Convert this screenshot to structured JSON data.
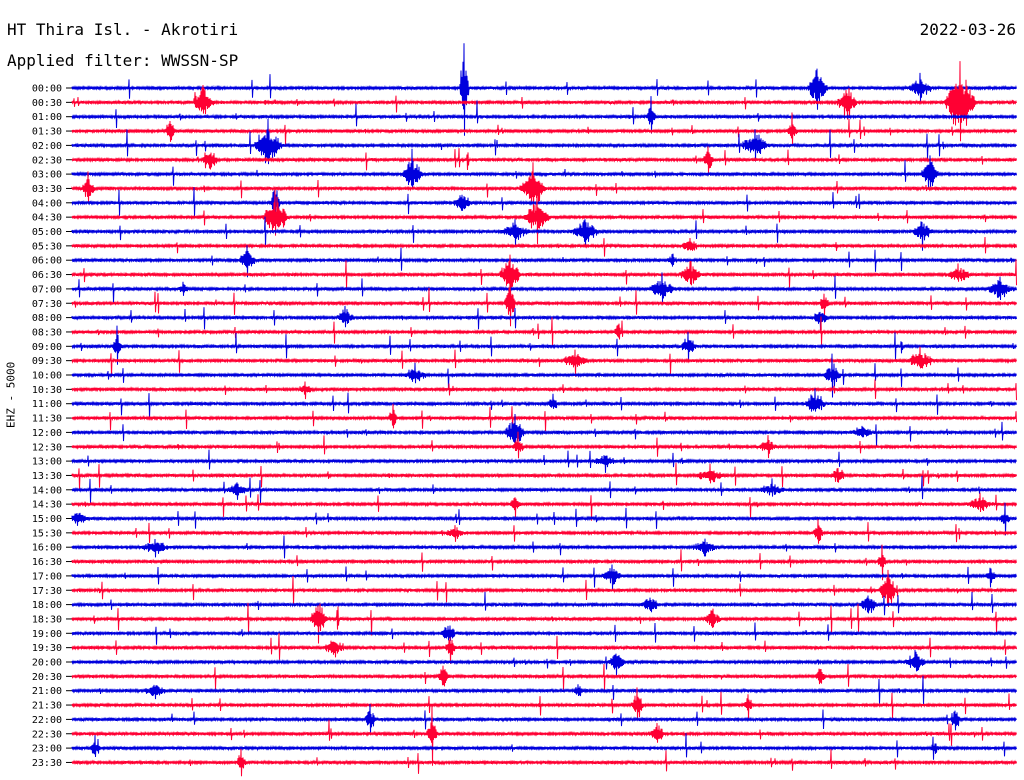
{
  "header": {
    "title": "HT Thira Isl. - Akrotiri",
    "date": "2022-03-26",
    "filter_label": "Applied filter:",
    "filter_value": "WWSSN-SP"
  },
  "channel_label": "EHZ - 5000",
  "colors": {
    "even_trace": "#0000dd",
    "odd_trace": "#ff0033",
    "text": "#000000",
    "background": "#ffffff"
  },
  "chart_data": {
    "type": "line",
    "rows": [
      {
        "time": "00:00",
        "color": "blue",
        "bursts": [
          [
            464,
            50,
            0.2
          ],
          [
            817,
            22,
            0.6
          ],
          [
            920,
            12,
            0.8
          ]
        ]
      },
      {
        "time": "00:30",
        "color": "red",
        "bursts": [
          [
            203,
            18,
            0.6
          ],
          [
            847,
            20,
            0.6
          ],
          [
            960,
            40,
            0.9
          ]
        ]
      },
      {
        "time": "01:00",
        "color": "blue",
        "bursts": [
          [
            651,
            16,
            0.3
          ]
        ]
      },
      {
        "time": "01:30",
        "color": "red",
        "bursts": [
          [
            170,
            16,
            0.3
          ],
          [
            792,
            14,
            0.3
          ]
        ]
      },
      {
        "time": "02:00",
        "color": "blue",
        "bursts": [
          [
            268,
            28,
            0.8
          ],
          [
            755,
            14,
            0.9
          ]
        ]
      },
      {
        "time": "02:30",
        "color": "red",
        "bursts": [
          [
            210,
            12,
            0.5
          ],
          [
            708,
            18,
            0.3
          ]
        ]
      },
      {
        "time": "03:00",
        "color": "blue",
        "bursts": [
          [
            412,
            20,
            0.6
          ],
          [
            930,
            22,
            0.5
          ]
        ]
      },
      {
        "time": "03:30",
        "color": "red",
        "bursts": [
          [
            88,
            14,
            0.4
          ],
          [
            533,
            22,
            0.8
          ]
        ]
      },
      {
        "time": "04:00",
        "color": "blue",
        "bursts": [
          [
            275,
            22,
            0.3
          ],
          [
            462,
            12,
            0.6
          ]
        ]
      },
      {
        "time": "04:30",
        "color": "red",
        "bursts": [
          [
            275,
            24,
            0.8
          ],
          [
            537,
            20,
            0.8
          ]
        ]
      },
      {
        "time": "05:00",
        "color": "blue",
        "bursts": [
          [
            515,
            12,
            0.9
          ],
          [
            585,
            14,
            0.9
          ],
          [
            922,
            14,
            0.6
          ]
        ]
      },
      {
        "time": "05:30",
        "color": "red",
        "bursts": [
          [
            690,
            10,
            0.5
          ]
        ]
      },
      {
        "time": "06:00",
        "color": "blue",
        "bursts": [
          [
            247,
            16,
            0.5
          ],
          [
            672,
            10,
            0.3
          ]
        ]
      },
      {
        "time": "06:30",
        "color": "red",
        "bursts": [
          [
            510,
            22,
            0.6
          ],
          [
            690,
            16,
            0.6
          ],
          [
            958,
            10,
            0.9
          ]
        ]
      },
      {
        "time": "07:00",
        "color": "blue",
        "bursts": [
          [
            183,
            10,
            0.3
          ],
          [
            662,
            14,
            0.8
          ],
          [
            1000,
            12,
            0.9
          ]
        ]
      },
      {
        "time": "07:30",
        "color": "red",
        "bursts": [
          [
            510,
            26,
            0.3
          ],
          [
            824,
            14,
            0.3
          ]
        ]
      },
      {
        "time": "08:00",
        "color": "blue",
        "bursts": [
          [
            345,
            12,
            0.5
          ],
          [
            820,
            10,
            0.5
          ]
        ]
      },
      {
        "time": "08:30",
        "color": "red",
        "bursts": [
          [
            618,
            10,
            0.3
          ]
        ]
      },
      {
        "time": "09:00",
        "color": "blue",
        "bursts": [
          [
            117,
            16,
            0.3
          ],
          [
            688,
            12,
            0.5
          ]
        ]
      },
      {
        "time": "09:30",
        "color": "red",
        "bursts": [
          [
            575,
            12,
            0.8
          ],
          [
            920,
            12,
            0.9
          ]
        ]
      },
      {
        "time": "10:00",
        "color": "blue",
        "bursts": [
          [
            415,
            10,
            0.8
          ],
          [
            832,
            16,
            0.5
          ]
        ]
      },
      {
        "time": "10:30",
        "color": "red",
        "bursts": [
          [
            305,
            8,
            0.5
          ]
        ]
      },
      {
        "time": "11:00",
        "color": "blue",
        "bursts": [
          [
            553,
            10,
            0.3
          ],
          [
            815,
            14,
            0.6
          ]
        ]
      },
      {
        "time": "11:30",
        "color": "red",
        "bursts": [
          [
            393,
            12,
            0.3
          ]
        ]
      },
      {
        "time": "12:00",
        "color": "blue",
        "bursts": [
          [
            515,
            18,
            0.6
          ],
          [
            862,
            8,
            0.9
          ]
        ]
      },
      {
        "time": "12:30",
        "color": "red",
        "bursts": [
          [
            518,
            14,
            0.3
          ],
          [
            768,
            12,
            0.5
          ]
        ]
      },
      {
        "time": "13:00",
        "color": "blue",
        "bursts": [
          [
            605,
            8,
            0.8
          ]
        ]
      },
      {
        "time": "13:30",
        "color": "red",
        "bursts": [
          [
            710,
            10,
            0.9
          ],
          [
            838,
            10,
            0.5
          ]
        ]
      },
      {
        "time": "14:00",
        "color": "blue",
        "bursts": [
          [
            237,
            8,
            0.8
          ],
          [
            772,
            8,
            0.9
          ]
        ]
      },
      {
        "time": "14:30",
        "color": "red",
        "bursts": [
          [
            515,
            12,
            0.3
          ],
          [
            980,
            10,
            0.9
          ]
        ]
      },
      {
        "time": "15:00",
        "color": "blue",
        "bursts": [
          [
            77,
            8,
            0.8
          ],
          [
            1005,
            12,
            0.3
          ]
        ]
      },
      {
        "time": "15:30",
        "color": "red",
        "bursts": [
          [
            455,
            8,
            0.8
          ],
          [
            818,
            14,
            0.3
          ]
        ]
      },
      {
        "time": "16:00",
        "color": "blue",
        "bursts": [
          [
            155,
            10,
            0.9
          ],
          [
            705,
            10,
            0.9
          ]
        ]
      },
      {
        "time": "16:30",
        "color": "red",
        "bursts": [
          [
            882,
            14,
            0.3
          ]
        ]
      },
      {
        "time": "17:00",
        "color": "blue",
        "bursts": [
          [
            612,
            12,
            0.6
          ],
          [
            990,
            12,
            0.3
          ]
        ]
      },
      {
        "time": "17:30",
        "color": "red",
        "bursts": [
          [
            888,
            22,
            0.5
          ]
        ]
      },
      {
        "time": "18:00",
        "color": "blue",
        "bursts": [
          [
            650,
            12,
            0.5
          ],
          [
            868,
            14,
            0.5
          ]
        ]
      },
      {
        "time": "18:30",
        "color": "red",
        "bursts": [
          [
            318,
            22,
            0.5
          ],
          [
            712,
            12,
            0.5
          ]
        ]
      },
      {
        "time": "19:00",
        "color": "blue",
        "bursts": [
          [
            448,
            12,
            0.5
          ]
        ]
      },
      {
        "time": "19:30",
        "color": "red",
        "bursts": [
          [
            335,
            10,
            0.8
          ],
          [
            450,
            14,
            0.3
          ]
        ]
      },
      {
        "time": "20:00",
        "color": "blue",
        "bursts": [
          [
            616,
            14,
            0.5
          ],
          [
            915,
            12,
            0.6
          ]
        ]
      },
      {
        "time": "20:30",
        "color": "red",
        "bursts": [
          [
            443,
            18,
            0.3
          ],
          [
            820,
            12,
            0.3
          ]
        ]
      },
      {
        "time": "21:00",
        "color": "blue",
        "bursts": [
          [
            155,
            8,
            0.8
          ],
          [
            578,
            10,
            0.3
          ]
        ]
      },
      {
        "time": "21:30",
        "color": "red",
        "bursts": [
          [
            637,
            22,
            0.3
          ],
          [
            748,
            12,
            0.3
          ]
        ]
      },
      {
        "time": "22:00",
        "color": "blue",
        "bursts": [
          [
            370,
            16,
            0.3
          ],
          [
            955,
            14,
            0.3
          ]
        ]
      },
      {
        "time": "22:30",
        "color": "red",
        "bursts": [
          [
            432,
            22,
            0.3
          ],
          [
            657,
            12,
            0.5
          ]
        ]
      },
      {
        "time": "23:00",
        "color": "blue",
        "bursts": [
          [
            95,
            12,
            0.3
          ],
          [
            935,
            8,
            0.3
          ]
        ]
      },
      {
        "time": "23:30",
        "color": "red",
        "bursts": [
          [
            241,
            14,
            0.3
          ]
        ]
      }
    ]
  }
}
